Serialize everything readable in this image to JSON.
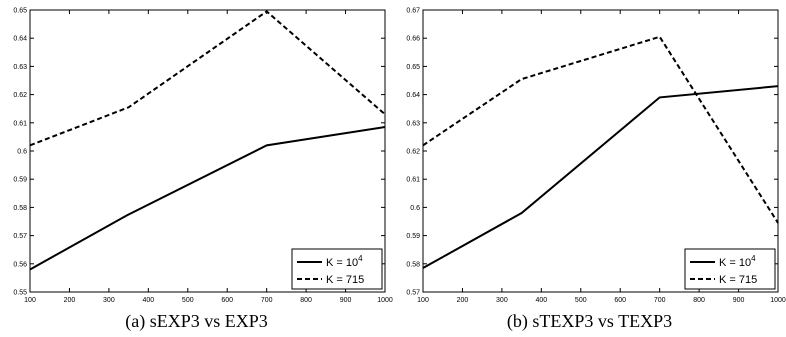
{
  "chart_data": [
    {
      "type": "line",
      "caption": "(a) sEXP3 vs EXP3",
      "x": [
        100,
        350,
        700,
        1000
      ],
      "xlim": [
        100,
        1000
      ],
      "ylim": [
        0.55,
        0.65
      ],
      "xticks": [
        "100",
        "200",
        "300",
        "400",
        "500",
        "600",
        "700",
        "800",
        "900",
        "1000"
      ],
      "yticks": [
        "0.55",
        "0.56",
        "0.57",
        "0.58",
        "0.59",
        "0.6",
        "0.61",
        "0.62",
        "0.63",
        "0.64",
        "0.65"
      ],
      "legend_position": "bottom-right",
      "grid": false,
      "series": [
        {
          "name": "K = 10",
          "superscript": "4",
          "style": "solid",
          "color": "#000000",
          "values": [
            0.558,
            0.5775,
            0.602,
            0.6085
          ]
        },
        {
          "name": "K = 715",
          "style": "dashed",
          "color": "#000000",
          "values": [
            0.602,
            0.6155,
            0.6495,
            0.613
          ]
        }
      ]
    },
    {
      "type": "line",
      "caption": "(b) sTEXP3 vs TEXP3",
      "x": [
        100,
        350,
        700,
        1000
      ],
      "xlim": [
        100,
        1000
      ],
      "ylim": [
        0.57,
        0.67
      ],
      "xticks": [
        "100",
        "200",
        "300",
        "400",
        "500",
        "600",
        "700",
        "800",
        "900",
        "1000"
      ],
      "yticks": [
        "0.57",
        "0.58",
        "0.59",
        "0.6",
        "0.61",
        "0.62",
        "0.63",
        "0.64",
        "0.65",
        "0.66",
        "0.67"
      ],
      "legend_position": "bottom-right",
      "grid": false,
      "series": [
        {
          "name": "K = 10",
          "superscript": "4",
          "style": "solid",
          "color": "#000000",
          "values": [
            0.5785,
            0.598,
            0.639,
            0.643
          ]
        },
        {
          "name": "K = 715",
          "style": "dashed",
          "color": "#000000",
          "values": [
            0.622,
            0.6455,
            0.6605,
            0.5945
          ]
        }
      ]
    }
  ]
}
